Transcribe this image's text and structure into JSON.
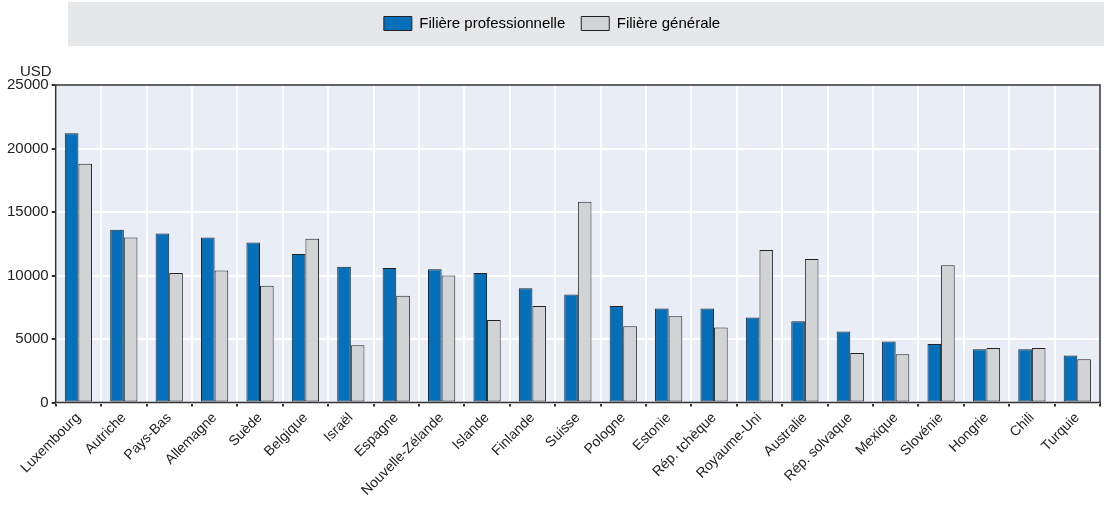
{
  "chart_data": {
    "type": "bar",
    "ylabel": "USD",
    "categories": [
      "Luxembourg",
      "Autriche",
      "Pays-Bas",
      "Allemagne",
      "Suède",
      "Belgique",
      "Israël",
      "Espagne",
      "Nouvelle-Zélande",
      "Islande",
      "Finlande",
      "Suisse",
      "Pologne",
      "Estonie",
      "Rép. tchèque",
      "Royaume-Uni",
      "Australie",
      "Rép. solvaque",
      "Mexique",
      "Slovénie",
      "Hongrie",
      "Chili",
      "Turquie"
    ],
    "series": [
      {
        "name": "Filière professionnelle",
        "color": "#0570b9",
        "values": [
          21200,
          13600,
          13300,
          13000,
          12600,
          11700,
          10700,
          10600,
          10500,
          10200,
          9000,
          8500,
          7600,
          7400,
          7400,
          6700,
          6400,
          5600,
          4800,
          4600,
          4200,
          4200,
          3700
        ]
      },
      {
        "name": "Filière générale",
        "color": "#d2d3d5",
        "values": [
          18800,
          13000,
          10200,
          10400,
          9200,
          12900,
          4500,
          8400,
          10000,
          6500,
          7600,
          15800,
          6000,
          6800,
          5900,
          12000,
          11300,
          3900,
          3800,
          10800,
          4300,
          4300,
          3400
        ]
      }
    ],
    "ylim": [
      0,
      25000
    ],
    "yticks": [
      0,
      5000,
      10000,
      15000,
      20000,
      25000
    ],
    "grid": true,
    "legend": "top"
  }
}
